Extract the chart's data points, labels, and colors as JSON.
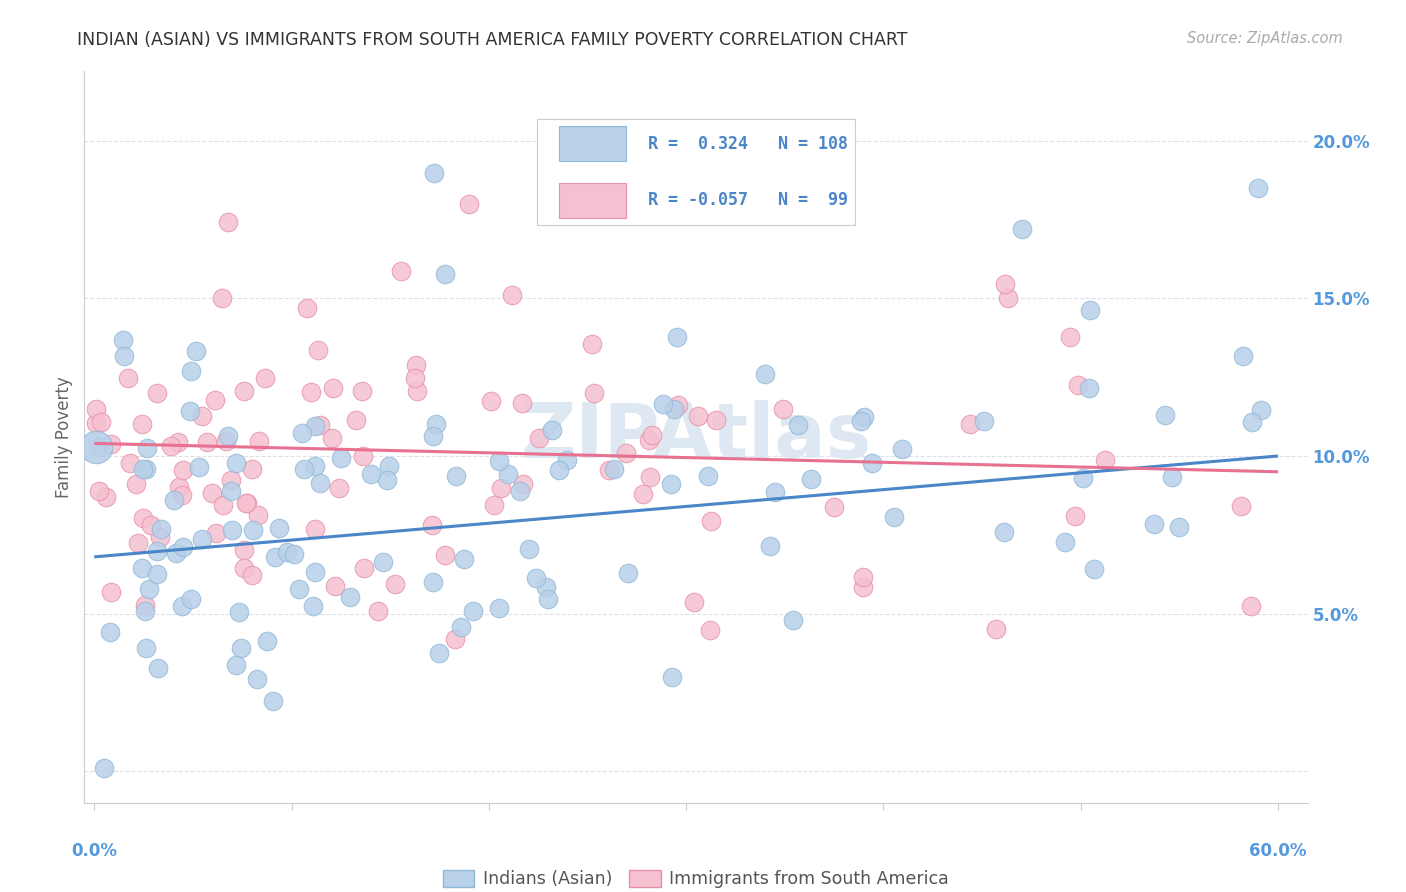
{
  "title": "INDIAN (ASIAN) VS IMMIGRANTS FROM SOUTH AMERICA FAMILY POVERTY CORRELATION CHART",
  "source": "Source: ZipAtlas.com",
  "ylabel": "Family Poverty",
  "yticks": [
    0.0,
    0.05,
    0.1,
    0.15,
    0.2
  ],
  "ytick_labels": [
    "",
    "5.0%",
    "10.0%",
    "15.0%",
    "20.0%"
  ],
  "xlim": [
    -0.005,
    0.615
  ],
  "ylim": [
    -0.01,
    0.222
  ],
  "color_blue": "#b8d0e8",
  "color_pink": "#f5c0d0",
  "line_blue": "#4a86c8",
  "line_pink": "#e87090",
  "scatter_blue_edge": "#90b8d8",
  "scatter_pink_edge": "#e890a8",
  "watermark": "ZIPAtlas",
  "legend_label_1": "Indians (Asian)",
  "legend_label_2": "Immigrants from South America",
  "blue_R": 0.324,
  "blue_N": 108,
  "pink_R": -0.057,
  "pink_N": 99,
  "blue_trend_x0": 0.0,
  "blue_trend_y0": 0.068,
  "blue_trend_x1": 0.6,
  "blue_trend_y1": 0.1,
  "pink_trend_x0": 0.0,
  "pink_trend_y0": 0.104,
  "pink_trend_x1": 0.6,
  "pink_trend_y1": 0.095,
  "background_color": "#ffffff",
  "grid_color": "#e0e0e8",
  "title_fontsize": 12.5,
  "tick_fontsize": 12,
  "scatter_size": 180
}
